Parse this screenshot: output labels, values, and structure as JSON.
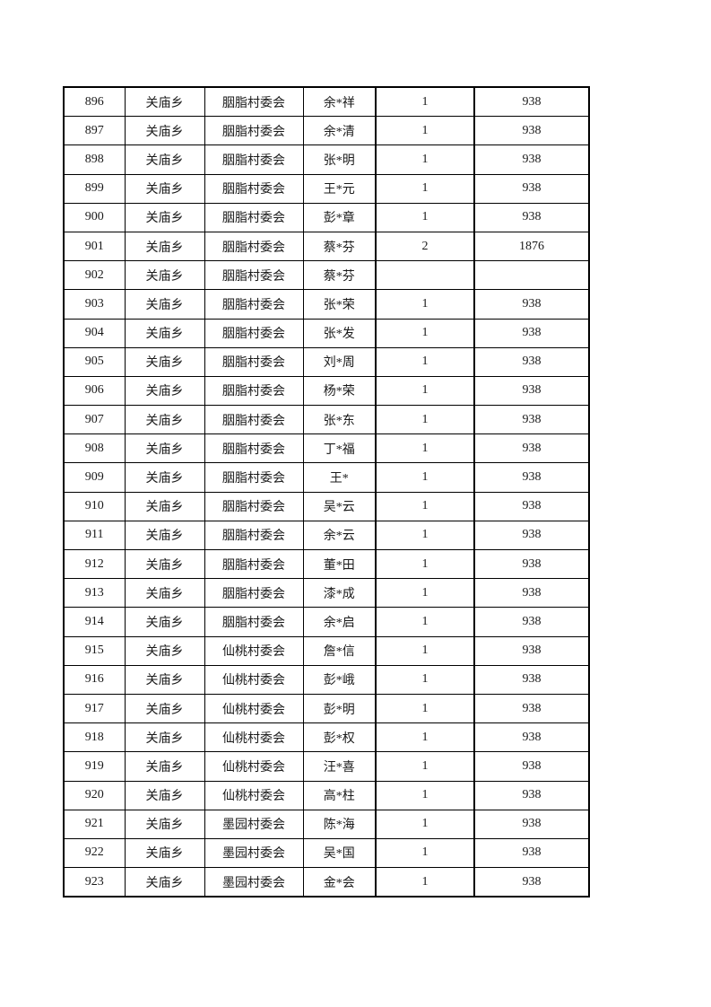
{
  "page": {
    "background_color": "#ffffff",
    "text_color": "#1a1a1a",
    "border_color": "#000000"
  },
  "table": {
    "rows": [
      {
        "no": "896",
        "town": "关庙乡",
        "village": "胭脂村委会",
        "name": "余*祥",
        "count": "1",
        "amount": "938"
      },
      {
        "no": "897",
        "town": "关庙乡",
        "village": "胭脂村委会",
        "name": "余*清",
        "count": "1",
        "amount": "938"
      },
      {
        "no": "898",
        "town": "关庙乡",
        "village": "胭脂村委会",
        "name": "张*明",
        "count": "1",
        "amount": "938"
      },
      {
        "no": "899",
        "town": "关庙乡",
        "village": "胭脂村委会",
        "name": "王*元",
        "count": "1",
        "amount": "938"
      },
      {
        "no": "900",
        "town": "关庙乡",
        "village": "胭脂村委会",
        "name": "彭*章",
        "count": "1",
        "amount": "938"
      },
      {
        "no": "901",
        "town": "关庙乡",
        "village": "胭脂村委会",
        "name": "蔡*芬",
        "count": "2",
        "amount": "1876"
      },
      {
        "no": "902",
        "town": "关庙乡",
        "village": "胭脂村委会",
        "name": "蔡*芬",
        "count": "",
        "amount": ""
      },
      {
        "no": "903",
        "town": "关庙乡",
        "village": "胭脂村委会",
        "name": "张*荣",
        "count": "1",
        "amount": "938"
      },
      {
        "no": "904",
        "town": "关庙乡",
        "village": "胭脂村委会",
        "name": "张*发",
        "count": "1",
        "amount": "938"
      },
      {
        "no": "905",
        "town": "关庙乡",
        "village": "胭脂村委会",
        "name": "刘*周",
        "count": "1",
        "amount": "938"
      },
      {
        "no": "906",
        "town": "关庙乡",
        "village": "胭脂村委会",
        "name": "杨*荣",
        "count": "1",
        "amount": "938"
      },
      {
        "no": "907",
        "town": "关庙乡",
        "village": "胭脂村委会",
        "name": "张*东",
        "count": "1",
        "amount": "938"
      },
      {
        "no": "908",
        "town": "关庙乡",
        "village": "胭脂村委会",
        "name": "丁*福",
        "count": "1",
        "amount": "938"
      },
      {
        "no": "909",
        "town": "关庙乡",
        "village": "胭脂村委会",
        "name": "王*",
        "count": "1",
        "amount": "938"
      },
      {
        "no": "910",
        "town": "关庙乡",
        "village": "胭脂村委会",
        "name": "吴*云",
        "count": "1",
        "amount": "938"
      },
      {
        "no": "911",
        "town": "关庙乡",
        "village": "胭脂村委会",
        "name": "余*云",
        "count": "1",
        "amount": "938"
      },
      {
        "no": "912",
        "town": "关庙乡",
        "village": "胭脂村委会",
        "name": "董*田",
        "count": "1",
        "amount": "938"
      },
      {
        "no": "913",
        "town": "关庙乡",
        "village": "胭脂村委会",
        "name": "漆*成",
        "count": "1",
        "amount": "938"
      },
      {
        "no": "914",
        "town": "关庙乡",
        "village": "胭脂村委会",
        "name": "余*启",
        "count": "1",
        "amount": "938"
      },
      {
        "no": "915",
        "town": "关庙乡",
        "village": "仙桃村委会",
        "name": "詹*信",
        "count": "1",
        "amount": "938"
      },
      {
        "no": "916",
        "town": "关庙乡",
        "village": "仙桃村委会",
        "name": "彭*峨",
        "count": "1",
        "amount": "938"
      },
      {
        "no": "917",
        "town": "关庙乡",
        "village": "仙桃村委会",
        "name": "彭*明",
        "count": "1",
        "amount": "938"
      },
      {
        "no": "918",
        "town": "关庙乡",
        "village": "仙桃村委会",
        "name": "彭*权",
        "count": "1",
        "amount": "938"
      },
      {
        "no": "919",
        "town": "关庙乡",
        "village": "仙桃村委会",
        "name": "汪*喜",
        "count": "1",
        "amount": "938"
      },
      {
        "no": "920",
        "town": "关庙乡",
        "village": "仙桃村委会",
        "name": "高*柱",
        "count": "1",
        "amount": "938"
      },
      {
        "no": "921",
        "town": "关庙乡",
        "village": "墨园村委会",
        "name": "陈*海",
        "count": "1",
        "amount": "938"
      },
      {
        "no": "922",
        "town": "关庙乡",
        "village": "墨园村委会",
        "name": "吴*国",
        "count": "1",
        "amount": "938"
      },
      {
        "no": "923",
        "town": "关庙乡",
        "village": "墨园村委会",
        "name": "金*会",
        "count": "1",
        "amount": "938"
      }
    ]
  }
}
